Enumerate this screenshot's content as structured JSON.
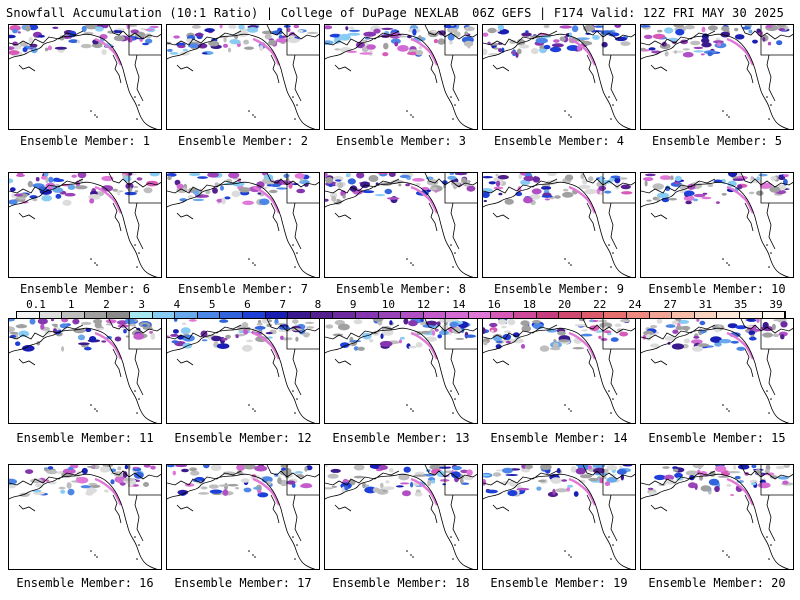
{
  "header": {
    "left": "Snowfall Accumulation (10:1 Ratio) | College of DuPage NEXLAB",
    "right": "06Z GEFS | F174 Valid: 12Z FRI MAY 30 2025"
  },
  "members": [
    "Ensemble Member: 1",
    "Ensemble Member: 2",
    "Ensemble Member: 3",
    "Ensemble Member: 4",
    "Ensemble Member: 5",
    "Ensemble Member: 6",
    "Ensemble Member: 7",
    "Ensemble Member: 8",
    "Ensemble Member: 9",
    "Ensemble Member: 10",
    "Ensemble Member: 11",
    "Ensemble Member: 12",
    "Ensemble Member: 13",
    "Ensemble Member: 14",
    "Ensemble Member: 15",
    "Ensemble Member: 16",
    "Ensemble Member: 17",
    "Ensemble Member: 18",
    "Ensemble Member: 19",
    "Ensemble Member: 20"
  ],
  "legend": {
    "labels": [
      "0.1",
      "1",
      "2",
      "3",
      "4",
      "5",
      "6",
      "7",
      "8",
      "9",
      "10",
      "12",
      "14",
      "16",
      "18",
      "20",
      "22",
      "24",
      "27",
      "31",
      "35",
      "39"
    ],
    "colors": [
      "#f4f4f4",
      "#dcdcdc",
      "#bebebe",
      "#a0a0a0",
      "#8a8a8a",
      "#a6e8f0",
      "#88ccf4",
      "#6aa8ec",
      "#4c86e6",
      "#3264dc",
      "#1e40d8",
      "#1a1fb4",
      "#3a1a8c",
      "#54208e",
      "#6e2aa0",
      "#8636ae",
      "#9a44b8",
      "#b050c4",
      "#c45ccc",
      "#d46ad4",
      "#e078d8",
      "#d85ab8",
      "#d04a9c",
      "#c83c80",
      "#d04a70",
      "#dc5c6c",
      "#e6706e",
      "#ee8a80",
      "#f2a494",
      "#f6bea8",
      "#f8d4c0",
      "#fbe6d8",
      "#fdf2ea",
      "#fffaf4"
    ]
  }
}
